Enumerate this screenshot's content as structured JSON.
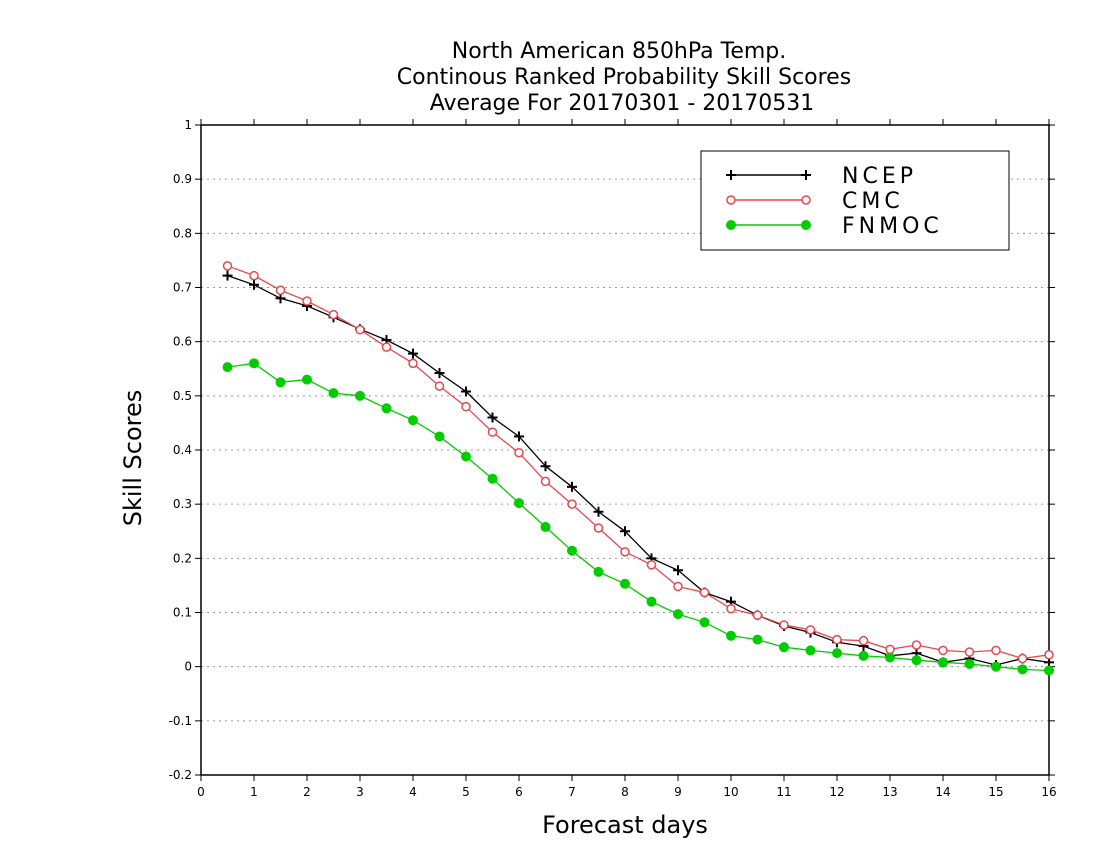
{
  "chart_data": {
    "type": "line",
    "title_lines": [
      "North American 850hPa Temp.",
      "Continous Ranked Probability Skill Scores",
      "Average For 20170301 - 20170531"
    ],
    "xlabel": "Forecast days",
    "ylabel": "Skill Scores",
    "xlim": [
      0,
      16
    ],
    "ylim": [
      -0.2,
      1
    ],
    "x_ticks": [
      "0",
      "1",
      "2",
      "3",
      "4",
      "5",
      "6",
      "7",
      "8",
      "9",
      "10",
      "11",
      "12",
      "13",
      "14",
      "15",
      "16"
    ],
    "y_ticks": [
      "-0.2",
      "-0.1",
      "0",
      "0.1",
      "0.2",
      "0.3",
      "0.4",
      "0.5",
      "0.6",
      "0.7",
      "0.8",
      "0.9",
      "1"
    ],
    "grid": "horizontal-dotted",
    "legend_position": "top-right",
    "x": [
      0.5,
      1,
      1.5,
      2,
      2.5,
      3,
      3.5,
      4,
      4.5,
      5,
      5.5,
      6,
      6.5,
      7,
      7.5,
      8,
      8.5,
      9,
      9.5,
      10,
      10.5,
      11,
      11.5,
      12,
      12.5,
      13,
      13.5,
      14,
      14.5,
      15,
      15.5,
      16
    ],
    "series": [
      {
        "name": "NCEP",
        "color": "#000000",
        "marker": "plus",
        "values": [
          0.722,
          0.705,
          0.68,
          0.666,
          0.645,
          0.623,
          0.603,
          0.578,
          0.542,
          0.508,
          0.46,
          0.425,
          0.37,
          0.332,
          0.286,
          0.25,
          0.2,
          0.178,
          0.137,
          0.12,
          0.095,
          0.075,
          0.063,
          0.045,
          0.038,
          0.02,
          0.025,
          0.008,
          0.015,
          0.003,
          0.015,
          0.008
        ]
      },
      {
        "name": "CMC",
        "color": "#e8474e",
        "marker": "open-circle",
        "values": [
          0.74,
          0.722,
          0.695,
          0.675,
          0.65,
          0.622,
          0.59,
          0.56,
          0.518,
          0.48,
          0.433,
          0.395,
          0.342,
          0.3,
          0.256,
          0.212,
          0.188,
          0.148,
          0.137,
          0.107,
          0.095,
          0.077,
          0.068,
          0.05,
          0.048,
          0.032,
          0.04,
          0.03,
          0.027,
          0.03,
          0.015,
          0.022
        ]
      },
      {
        "name": "FNMOC",
        "color": "#00cc00",
        "marker": "filled-circle",
        "values": [
          0.553,
          0.56,
          0.525,
          0.53,
          0.505,
          0.5,
          0.477,
          0.455,
          0.425,
          0.388,
          0.347,
          0.302,
          0.258,
          0.214,
          0.175,
          0.153,
          0.12,
          0.097,
          0.082,
          0.057,
          0.05,
          0.036,
          0.03,
          0.025,
          0.02,
          0.017,
          0.012,
          0.008,
          0.005,
          0.0,
          -0.005,
          -0.007
        ]
      }
    ]
  }
}
